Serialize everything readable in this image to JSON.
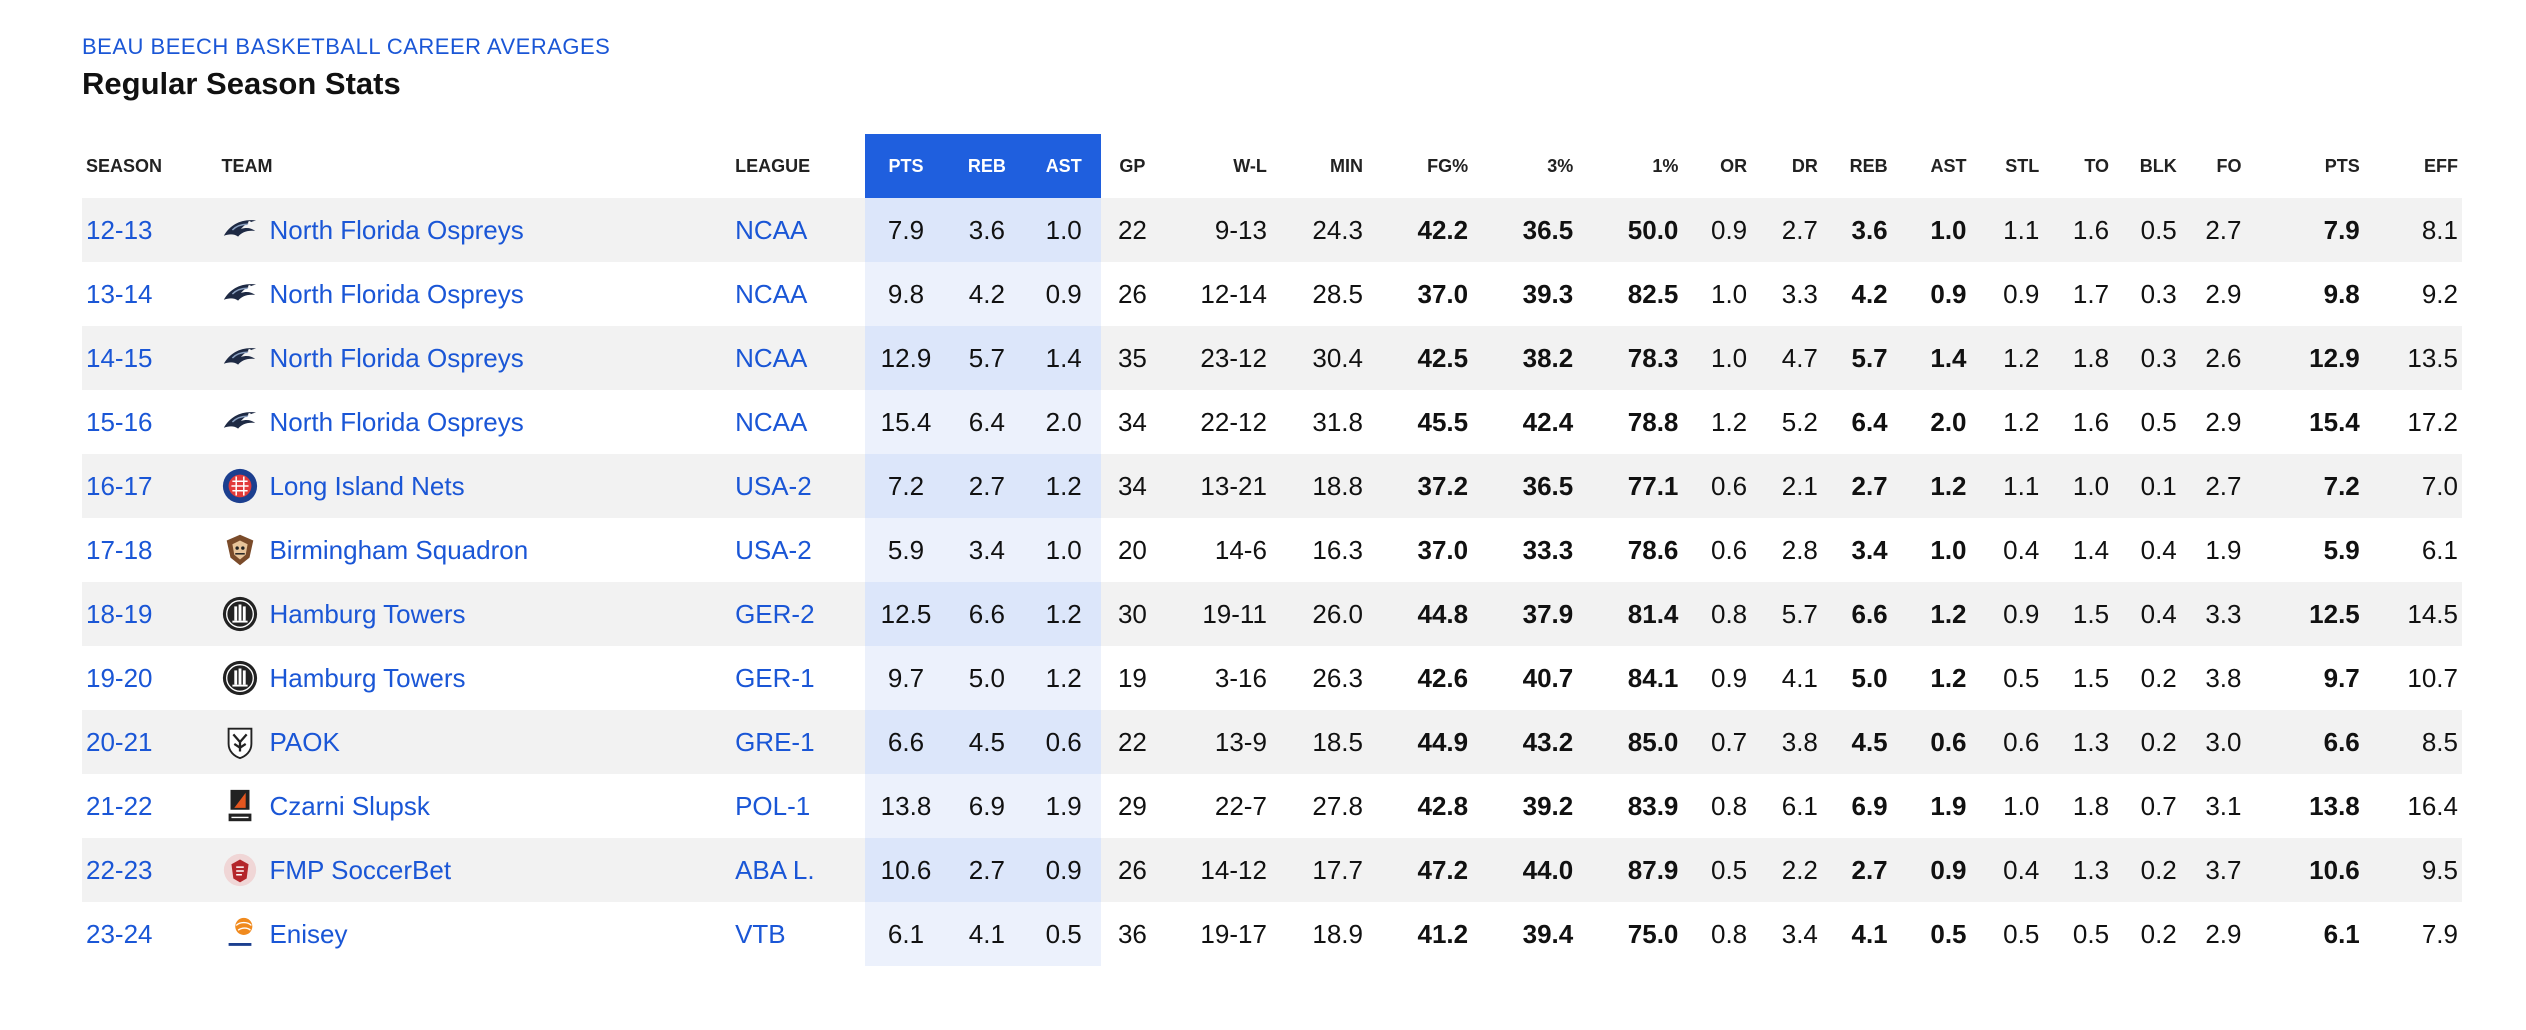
{
  "header": {
    "supertitle": "BEAU BEECH BASKETBALL CAREER AVERAGES",
    "title": "Regular Season Stats"
  },
  "columns": {
    "season": "SEASON",
    "team": "TEAM",
    "league": "LEAGUE",
    "pts_hl": "PTS",
    "reb_hl": "REB",
    "ast_hl": "AST",
    "gp": "GP",
    "wl": "W-L",
    "min": "MIN",
    "fg": "FG%",
    "three": "3%",
    "ft": "1%",
    "or": "OR",
    "dr": "DR",
    "reb": "REB",
    "ast": "AST",
    "stl": "STL",
    "to": "TO",
    "blk": "BLK",
    "fo": "FO",
    "pts": "PTS",
    "eff": "EFF"
  },
  "colors": {
    "accent": "#1f5fde",
    "link": "#1a56d6",
    "row_alt": "#f2f2f2",
    "highlight_alt": "#dce6fa"
  },
  "rows": [
    {
      "season": "12-13",
      "team": "North Florida Ospreys",
      "logo": "osprey-icon",
      "league": "NCAA",
      "pts_hl": "7.9",
      "reb_hl": "3.6",
      "ast_hl": "1.0",
      "gp": "22",
      "wl": "9-13",
      "min": "24.3",
      "fg": "42.2",
      "three": "36.5",
      "ft": "50.0",
      "or": "0.9",
      "dr": "2.7",
      "reb": "3.6",
      "ast": "1.0",
      "stl": "1.1",
      "to": "1.6",
      "blk": "0.5",
      "fo": "2.7",
      "pts": "7.9",
      "eff": "8.1"
    },
    {
      "season": "13-14",
      "team": "North Florida Ospreys",
      "logo": "osprey-icon",
      "league": "NCAA",
      "pts_hl": "9.8",
      "reb_hl": "4.2",
      "ast_hl": "0.9",
      "gp": "26",
      "wl": "12-14",
      "min": "28.5",
      "fg": "37.0",
      "three": "39.3",
      "ft": "82.5",
      "or": "1.0",
      "dr": "3.3",
      "reb": "4.2",
      "ast": "0.9",
      "stl": "0.9",
      "to": "1.7",
      "blk": "0.3",
      "fo": "2.9",
      "pts": "9.8",
      "eff": "9.2"
    },
    {
      "season": "14-15",
      "team": "North Florida Ospreys",
      "logo": "osprey-icon",
      "league": "NCAA",
      "pts_hl": "12.9",
      "reb_hl": "5.7",
      "ast_hl": "1.4",
      "gp": "35",
      "wl": "23-12",
      "min": "30.4",
      "fg": "42.5",
      "three": "38.2",
      "ft": "78.3",
      "or": "1.0",
      "dr": "4.7",
      "reb": "5.7",
      "ast": "1.4",
      "stl": "1.2",
      "to": "1.8",
      "blk": "0.3",
      "fo": "2.6",
      "pts": "12.9",
      "eff": "13.5"
    },
    {
      "season": "15-16",
      "team": "North Florida Ospreys",
      "logo": "osprey-icon",
      "league": "NCAA",
      "pts_hl": "15.4",
      "reb_hl": "6.4",
      "ast_hl": "2.0",
      "gp": "34",
      "wl": "22-12",
      "min": "31.8",
      "fg": "45.5",
      "three": "42.4",
      "ft": "78.8",
      "or": "1.2",
      "dr": "5.2",
      "reb": "6.4",
      "ast": "2.0",
      "stl": "1.2",
      "to": "1.6",
      "blk": "0.5",
      "fo": "2.9",
      "pts": "15.4",
      "eff": "17.2"
    },
    {
      "season": "16-17",
      "team": "Long Island Nets",
      "logo": "nets-icon",
      "league": "USA-2",
      "pts_hl": "7.2",
      "reb_hl": "2.7",
      "ast_hl": "1.2",
      "gp": "34",
      "wl": "13-21",
      "min": "18.8",
      "fg": "37.2",
      "three": "36.5",
      "ft": "77.1",
      "or": "0.6",
      "dr": "2.1",
      "reb": "2.7",
      "ast": "1.2",
      "stl": "1.1",
      "to": "1.0",
      "blk": "0.1",
      "fo": "2.7",
      "pts": "7.2",
      "eff": "7.0"
    },
    {
      "season": "17-18",
      "team": "Birmingham Squadron",
      "logo": "squadron-icon",
      "league": "USA-2",
      "pts_hl": "5.9",
      "reb_hl": "3.4",
      "ast_hl": "1.0",
      "gp": "20",
      "wl": "14-6",
      "min": "16.3",
      "fg": "37.0",
      "three": "33.3",
      "ft": "78.6",
      "or": "0.6",
      "dr": "2.8",
      "reb": "3.4",
      "ast": "1.0",
      "stl": "0.4",
      "to": "1.4",
      "blk": "0.4",
      "fo": "1.9",
      "pts": "5.9",
      "eff": "6.1"
    },
    {
      "season": "18-19",
      "team": "Hamburg Towers",
      "logo": "towers-icon",
      "league": "GER-2",
      "pts_hl": "12.5",
      "reb_hl": "6.6",
      "ast_hl": "1.2",
      "gp": "30",
      "wl": "19-11",
      "min": "26.0",
      "fg": "44.8",
      "three": "37.9",
      "ft": "81.4",
      "or": "0.8",
      "dr": "5.7",
      "reb": "6.6",
      "ast": "1.2",
      "stl": "0.9",
      "to": "1.5",
      "blk": "0.4",
      "fo": "3.3",
      "pts": "12.5",
      "eff": "14.5"
    },
    {
      "season": "19-20",
      "team": "Hamburg Towers",
      "logo": "towers-icon",
      "league": "GER-1",
      "pts_hl": "9.7",
      "reb_hl": "5.0",
      "ast_hl": "1.2",
      "gp": "19",
      "wl": "3-16",
      "min": "26.3",
      "fg": "42.6",
      "three": "40.7",
      "ft": "84.1",
      "or": "0.9",
      "dr": "4.1",
      "reb": "5.0",
      "ast": "1.2",
      "stl": "0.5",
      "to": "1.5",
      "blk": "0.2",
      "fo": "3.8",
      "pts": "9.7",
      "eff": "10.7"
    },
    {
      "season": "20-21",
      "team": "PAOK",
      "logo": "paok-icon",
      "league": "GRE-1",
      "pts_hl": "6.6",
      "reb_hl": "4.5",
      "ast_hl": "0.6",
      "gp": "22",
      "wl": "13-9",
      "min": "18.5",
      "fg": "44.9",
      "three": "43.2",
      "ft": "85.0",
      "or": "0.7",
      "dr": "3.8",
      "reb": "4.5",
      "ast": "0.6",
      "stl": "0.6",
      "to": "1.3",
      "blk": "0.2",
      "fo": "3.0",
      "pts": "6.6",
      "eff": "8.5"
    },
    {
      "season": "21-22",
      "team": "Czarni Slupsk",
      "logo": "czarni-icon",
      "league": "POL-1",
      "pts_hl": "13.8",
      "reb_hl": "6.9",
      "ast_hl": "1.9",
      "gp": "29",
      "wl": "22-7",
      "min": "27.8",
      "fg": "42.8",
      "three": "39.2",
      "ft": "83.9",
      "or": "0.8",
      "dr": "6.1",
      "reb": "6.9",
      "ast": "1.9",
      "stl": "1.0",
      "to": "1.8",
      "blk": "0.7",
      "fo": "3.1",
      "pts": "13.8",
      "eff": "16.4"
    },
    {
      "season": "22-23",
      "team": "FMP SoccerBet",
      "logo": "fmp-icon",
      "league": "ABA L.",
      "pts_hl": "10.6",
      "reb_hl": "2.7",
      "ast_hl": "0.9",
      "gp": "26",
      "wl": "14-12",
      "min": "17.7",
      "fg": "47.2",
      "three": "44.0",
      "ft": "87.9",
      "or": "0.5",
      "dr": "2.2",
      "reb": "2.7",
      "ast": "0.9",
      "stl": "0.4",
      "to": "1.3",
      "blk": "0.2",
      "fo": "3.7",
      "pts": "10.6",
      "eff": "9.5"
    },
    {
      "season": "23-24",
      "team": "Enisey",
      "logo": "enisey-icon",
      "league": "VTB",
      "pts_hl": "6.1",
      "reb_hl": "4.1",
      "ast_hl": "0.5",
      "gp": "36",
      "wl": "19-17",
      "min": "18.9",
      "fg": "41.2",
      "three": "39.4",
      "ft": "75.0",
      "or": "0.8",
      "dr": "3.4",
      "reb": "4.1",
      "ast": "0.5",
      "stl": "0.5",
      "to": "0.5",
      "blk": "0.2",
      "fo": "2.9",
      "pts": "6.1",
      "eff": "7.9"
    }
  ]
}
